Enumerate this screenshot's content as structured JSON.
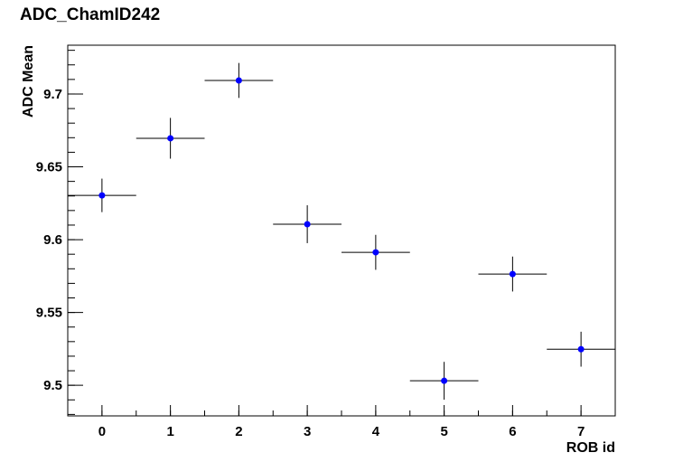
{
  "chart_data": {
    "type": "scatter",
    "title": "ADC_ChamID242",
    "x_label": "ROB id",
    "y_label": "ADC Mean",
    "x": [
      0,
      1,
      2,
      3,
      4,
      5,
      6,
      7
    ],
    "values": [
      9.6304,
      9.6696,
      9.7093,
      9.6106,
      9.5913,
      9.5031,
      9.5764,
      9.5248
    ],
    "yerr": [
      0.0115,
      0.014,
      0.012,
      0.013,
      0.012,
      0.013,
      0.012,
      0.012
    ],
    "xerr": [
      0.5,
      0.5,
      0.5,
      0.5,
      0.5,
      0.5,
      0.5,
      0.5
    ],
    "color": "#0000ff",
    "xlim": [
      -0.5,
      7.5
    ],
    "xticks": [
      0,
      1,
      2,
      3,
      4,
      5,
      6,
      7
    ],
    "ylim": [
      9.479,
      9.7335
    ],
    "yticks": [
      9.5,
      9.55,
      9.6,
      9.65,
      9.7
    ],
    "grid": false
  }
}
